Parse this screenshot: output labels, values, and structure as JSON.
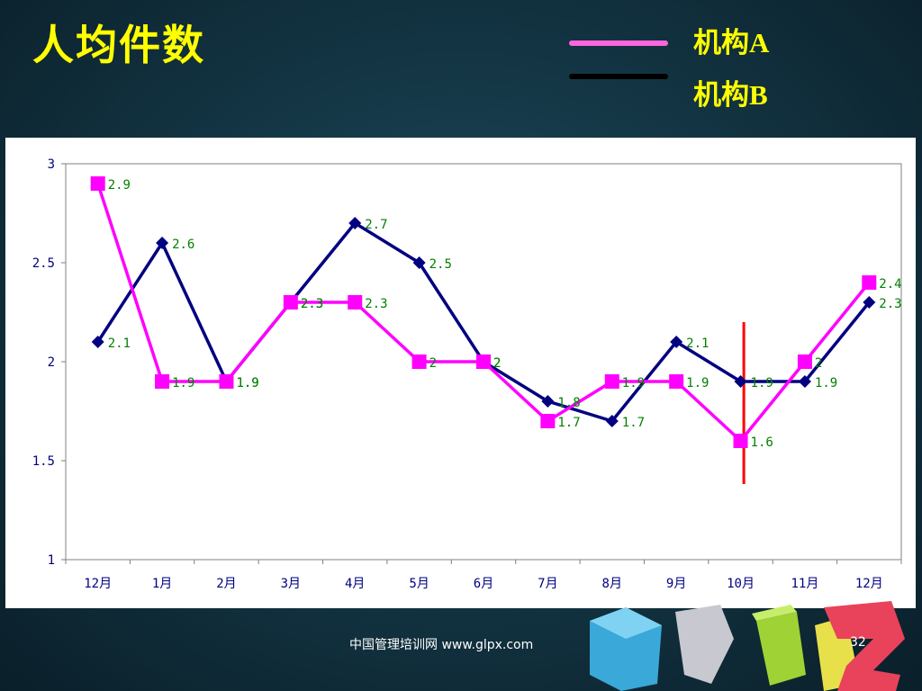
{
  "slide": {
    "title": "人均件数",
    "footer": "中国管理培训网  www.glpx.com",
    "page_number": "32"
  },
  "legend": [
    {
      "label": "机构A",
      "color": "#ff66dd"
    },
    {
      "label": "机构B",
      "color": "#000000"
    }
  ],
  "colors": {
    "series_a": "#ff00ff",
    "series_b": "#000080",
    "data_label": "#008000",
    "axis_text": "#000080",
    "marker_line": "#ff0000",
    "title": "#ffff00"
  },
  "chart_data": {
    "type": "line",
    "categories": [
      "12月",
      "1月",
      "2月",
      "3月",
      "4月",
      "5月",
      "6月",
      "7月",
      "8月",
      "9月",
      "10月",
      "11月",
      "12月"
    ],
    "ylim": [
      1,
      3
    ],
    "yticks": [
      "1",
      "1.5",
      "2",
      "2.5",
      "3"
    ],
    "xlabel": "",
    "ylabel": "",
    "grid": false,
    "series": [
      {
        "name": "机构A",
        "marker": "square",
        "values": [
          2.9,
          1.9,
          1.9,
          2.3,
          2.3,
          2,
          2,
          1.7,
          1.9,
          1.9,
          1.6,
          2,
          2.4
        ]
      },
      {
        "name": "机构B",
        "marker": "diamond",
        "values": [
          2.1,
          2.6,
          1.9,
          2.3,
          2.7,
          2.5,
          2,
          1.8,
          1.7,
          2.1,
          1.9,
          1.9,
          2.3
        ]
      }
    ],
    "data_labels": {
      "series_a": [
        "2.9",
        "1.9",
        "1.9",
        "2.3",
        "2.3",
        "2",
        "2",
        "1.7",
        "1.9",
        "1.9",
        "1.6",
        "2",
        "2.4"
      ],
      "series_b": [
        "2.1",
        "2.6",
        "1.9",
        "2.3",
        "2.7",
        "2.5",
        "2",
        "1.8",
        "1.7",
        "2.1",
        "1.9",
        "1.9",
        "2.3"
      ]
    },
    "annotation": {
      "type": "vertical-line",
      "between": [
        "10月",
        "11月"
      ]
    }
  }
}
